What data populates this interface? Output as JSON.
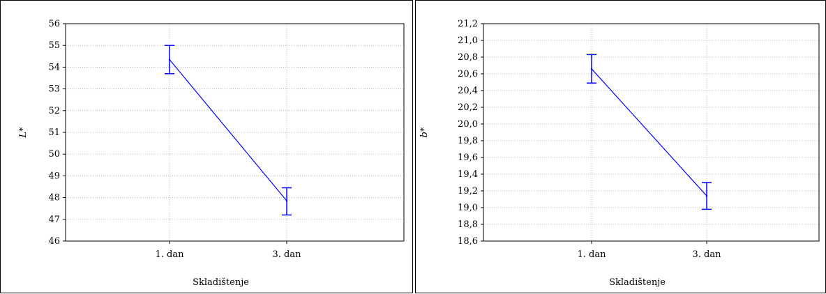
{
  "colors": {
    "series": "#0000ff",
    "grid": "#b4b4b4",
    "axis": "#000000"
  },
  "chart_data": [
    {
      "type": "line",
      "title": "",
      "xlabel": "Skladištenje",
      "ylabel": "L*",
      "categories": [
        "1. dan",
        "3. dan"
      ],
      "ylim": [
        46,
        56
      ],
      "yticks": [
        46,
        47,
        48,
        49,
        50,
        51,
        52,
        53,
        54,
        55,
        56
      ],
      "ytick_labels": [
        "46",
        "47",
        "48",
        "49",
        "50",
        "51",
        "52",
        "53",
        "54",
        "55",
        "56"
      ],
      "grid": true,
      "series": [
        {
          "values": [
            54.35,
            47.85
          ],
          "err_low": [
            53.7,
            47.2
          ],
          "err_high": [
            55.0,
            48.45
          ]
        }
      ]
    },
    {
      "type": "line",
      "title": "",
      "xlabel": "Skladištenje",
      "ylabel": "b*",
      "categories": [
        "1. dan",
        "3. dan"
      ],
      "ylim": [
        18.6,
        21.2
      ],
      "yticks": [
        18.6,
        18.8,
        19.0,
        19.2,
        19.4,
        19.6,
        19.8,
        20.0,
        20.2,
        20.4,
        20.6,
        20.8,
        21.0,
        21.2
      ],
      "ytick_labels": [
        "18,6",
        "18,8",
        "19,0",
        "19,2",
        "19,4",
        "19,6",
        "19,8",
        "20,0",
        "20,2",
        "20,4",
        "20,6",
        "20,8",
        "21,0",
        "21,2"
      ],
      "grid": true,
      "series": [
        {
          "values": [
            20.66,
            19.14
          ],
          "err_low": [
            20.49,
            18.98
          ],
          "err_high": [
            20.83,
            19.3
          ]
        }
      ]
    }
  ]
}
